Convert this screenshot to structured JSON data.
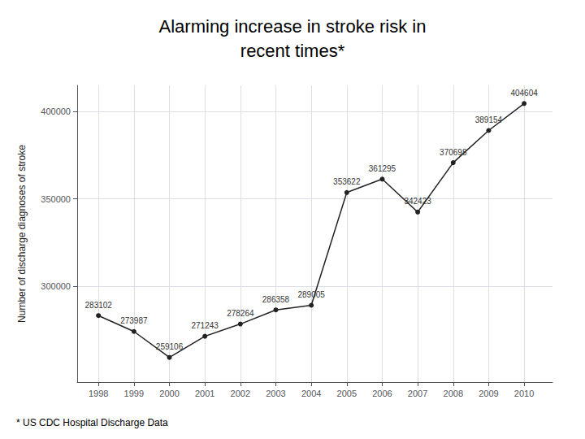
{
  "chart_data": {
    "type": "line",
    "title": "Alarming increase in stroke risk in\nrecent times*",
    "ylabel": "Number of discharge diagnoses of stroke",
    "x": [
      1998,
      1999,
      2000,
      2001,
      2002,
      2003,
      2004,
      2005,
      2006,
      2007,
      2008,
      2009,
      2010
    ],
    "values": [
      283102,
      273987,
      259106,
      271243,
      278264,
      286358,
      289005,
      353622,
      361295,
      342423,
      370698,
      389154,
      404604
    ],
    "color": "#222222",
    "marker": "circle",
    "xlim": [
      1997.4,
      2010.8
    ],
    "xticks": [
      1998,
      1999,
      2000,
      2001,
      2002,
      2003,
      2004,
      2005,
      2006,
      2007,
      2008,
      2009,
      2010
    ],
    "ylim": [
      245000,
      415000
    ],
    "yticks": [
      300000,
      350000,
      400000
    ],
    "grid": true,
    "data_labels": true,
    "annotations": [
      "* US CDC Hospital Discharge Data"
    ]
  }
}
